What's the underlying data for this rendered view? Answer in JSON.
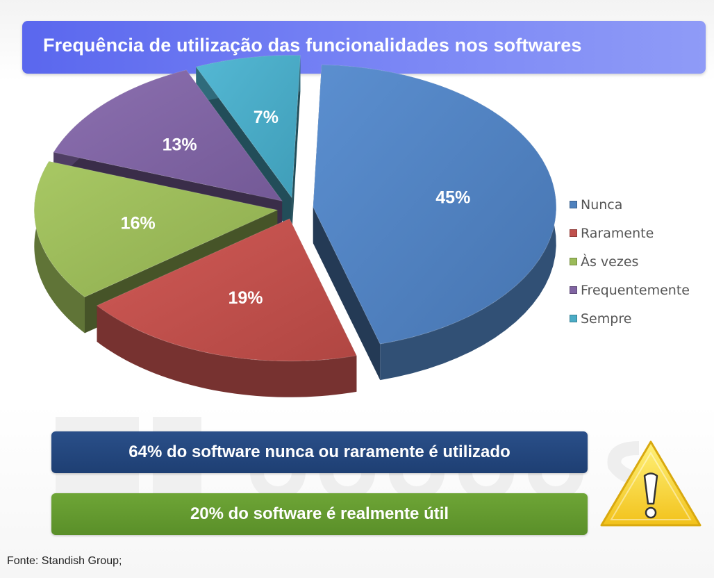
{
  "title": "Frequência de utilização das funcionalidades nos softwares",
  "chart_data": {
    "type": "pie",
    "style": "3d-exploded",
    "categories": [
      "Nunca",
      "Raramente",
      "Às vezes",
      "Frequentemente",
      "Sempre"
    ],
    "values": [
      45,
      19,
      16,
      13,
      7
    ],
    "data_labels": [
      "45%",
      "19%",
      "16%",
      "13%",
      "7%"
    ],
    "colors": [
      "#4f81bd",
      "#c0504d",
      "#9bbb59",
      "#8064a2",
      "#4bacc6"
    ],
    "legend_position": "right"
  },
  "banners": {
    "blue_text": "64% do software nunca ou raramente é utilizado",
    "green_text": "20% do software é realmente útil"
  },
  "warning_icon": "warning-triangle-icon",
  "source": "Fonte: Standish Group;"
}
